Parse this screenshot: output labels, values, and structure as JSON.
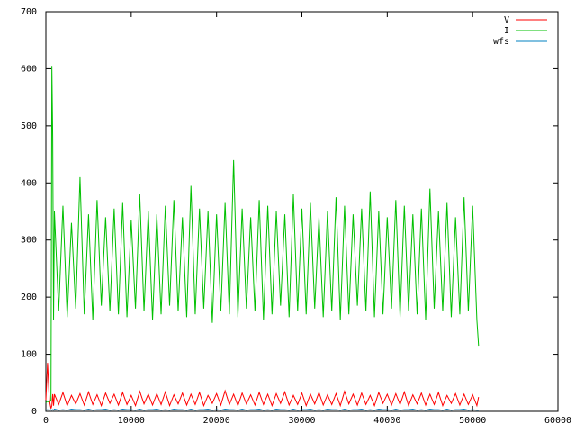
{
  "chart_data": {
    "type": "line",
    "x": [
      0,
      200,
      400,
      600,
      700,
      800,
      900,
      1000,
      1500,
      2000,
      2500,
      3000,
      3500,
      4000,
      4500,
      5000,
      5500,
      6000,
      6500,
      7000,
      7500,
      8000,
      8500,
      9000,
      9500,
      10000,
      10500,
      11000,
      11500,
      12000,
      12500,
      13000,
      13500,
      14000,
      14500,
      15000,
      15500,
      16000,
      16500,
      17000,
      17500,
      18000,
      18500,
      19000,
      19500,
      20000,
      20500,
      21000,
      21500,
      22000,
      22500,
      23000,
      23500,
      24000,
      24500,
      25000,
      25500,
      26000,
      26500,
      27000,
      27500,
      28000,
      28500,
      29000,
      29500,
      30000,
      30500,
      31000,
      31500,
      32000,
      32500,
      33000,
      33500,
      34000,
      34500,
      35000,
      35500,
      36000,
      36500,
      37000,
      37500,
      38000,
      38500,
      39000,
      39500,
      40000,
      40500,
      41000,
      41500,
      42000,
      42500,
      43000,
      43500,
      44000,
      44500,
      45000,
      45500,
      46000,
      46500,
      47000,
      47500,
      48000,
      48500,
      49000,
      49500,
      50000,
      50500,
      50700
    ],
    "series": [
      {
        "name": "V",
        "color": "#ff0000",
        "values": [
          20,
          85,
          20,
          5,
          10,
          30,
          10,
          30,
          12,
          33,
          10,
          28,
          13,
          31,
          11,
          34,
          12,
          29,
          10,
          32,
          14,
          30,
          11,
          33,
          12,
          28,
          10,
          35,
          13,
          30,
          11,
          31,
          12,
          34,
          10,
          29,
          13,
          32,
          11,
          30,
          12,
          33,
          10,
          28,
          14,
          31,
          11,
          36,
          12,
          30,
          10,
          32,
          13,
          29,
          11,
          33,
          12,
          30,
          10,
          31,
          14,
          34,
          11,
          28,
          12,
          32,
          10,
          30,
          13,
          33,
          11,
          29,
          12,
          31,
          10,
          35,
          13,
          30,
          11,
          32,
          12,
          28,
          10,
          33,
          14,
          30,
          11,
          31,
          12,
          34,
          10,
          29,
          13,
          32,
          11,
          30,
          12,
          33,
          10,
          28,
          14,
          31,
          11,
          30,
          12,
          29,
          10,
          25
        ]
      },
      {
        "name": "I",
        "color": "#00c000",
        "values": [
          15,
          18,
          15,
          20,
          605,
          480,
          160,
          350,
          175,
          360,
          165,
          330,
          180,
          410,
          170,
          345,
          160,
          370,
          185,
          340,
          175,
          355,
          170,
          365,
          165,
          335,
          180,
          380,
          175,
          350,
          160,
          345,
          170,
          360,
          185,
          370,
          175,
          340,
          165,
          395,
          170,
          355,
          180,
          350,
          155,
          345,
          175,
          365,
          170,
          440,
          165,
          355,
          180,
          340,
          175,
          370,
          160,
          360,
          170,
          350,
          185,
          345,
          165,
          380,
          175,
          355,
          170,
          365,
          180,
          340,
          165,
          350,
          175,
          375,
          160,
          360,
          170,
          345,
          185,
          355,
          175,
          385,
          165,
          350,
          170,
          340,
          180,
          370,
          165,
          360,
          175,
          345,
          170,
          355,
          160,
          390,
          180,
          350,
          175,
          365,
          165,
          340,
          170,
          375,
          175,
          360,
          160,
          115
        ]
      },
      {
        "name": "wfs",
        "color": "#0080c0",
        "values": [
          2,
          3,
          2,
          3,
          2,
          3,
          2,
          4,
          2,
          3,
          2,
          4,
          3,
          3,
          2,
          4,
          2,
          3,
          3,
          4,
          2,
          3,
          2,
          4,
          3,
          3,
          2,
          4,
          2,
          3,
          3,
          4,
          2,
          3,
          2,
          4,
          3,
          3,
          2,
          4,
          2,
          3,
          3,
          4,
          2,
          3,
          2,
          4,
          3,
          3,
          2,
          4,
          2,
          3,
          3,
          4,
          2,
          3,
          2,
          4,
          3,
          3,
          2,
          4,
          2,
          3,
          3,
          4,
          2,
          3,
          2,
          4,
          3,
          3,
          2,
          4,
          2,
          3,
          3,
          4,
          2,
          3,
          2,
          4,
          3,
          3,
          2,
          4,
          2,
          3,
          3,
          4,
          2,
          3,
          2,
          4,
          3,
          3,
          2,
          4,
          2,
          3,
          3,
          4,
          2,
          3,
          2,
          2
        ]
      }
    ],
    "xlim": [
      0,
      60000
    ],
    "xticks": [
      0,
      10000,
      20000,
      30000,
      40000,
      50000,
      60000
    ],
    "ylim": [
      0,
      700
    ],
    "yticks": [
      0,
      100,
      200,
      300,
      400,
      500,
      600,
      700
    ]
  }
}
